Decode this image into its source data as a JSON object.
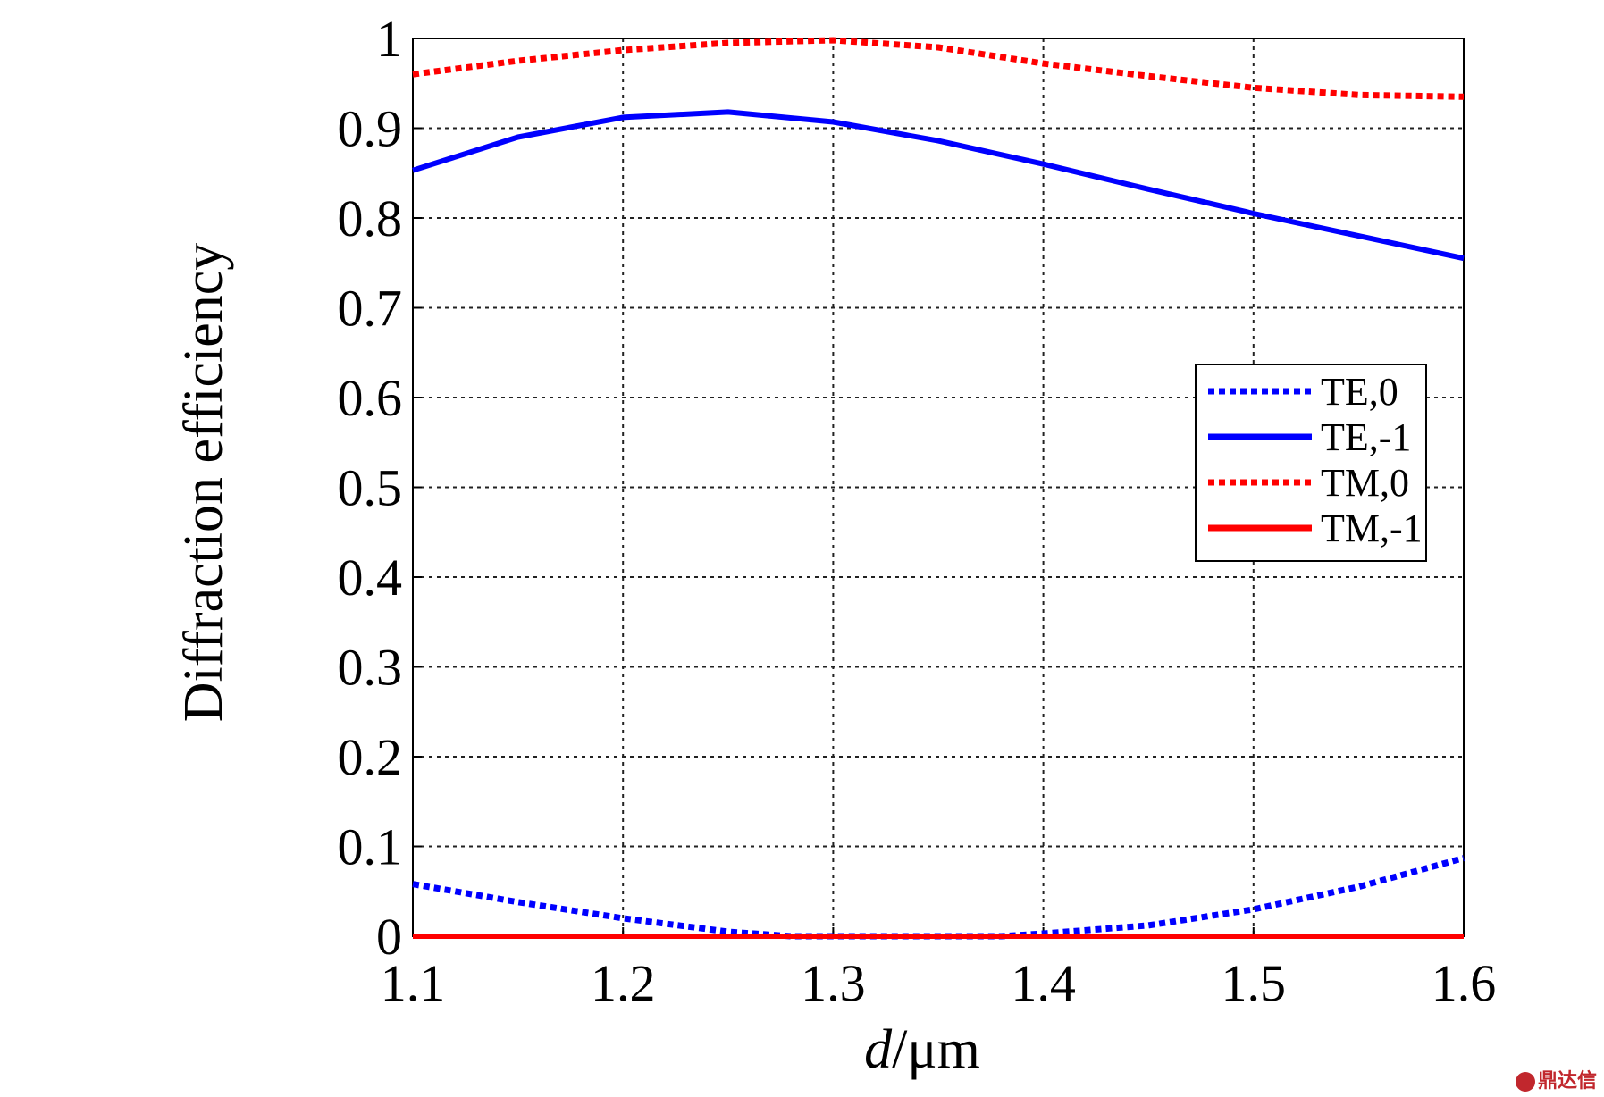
{
  "chart_data": {
    "type": "line",
    "title": "",
    "xlabel_italic": "d",
    "xlabel_rest": "/μm",
    "ylabel": "Diffraction efficiency",
    "xlim": [
      1.1,
      1.6
    ],
    "ylim": [
      0,
      1
    ],
    "xticks": [
      1.1,
      1.2,
      1.3,
      1.4,
      1.5,
      1.6
    ],
    "xtick_labels": [
      "1.1",
      "1.2",
      "1.3",
      "1.4",
      "1.5",
      "1.6"
    ],
    "yticks": [
      0,
      0.1,
      0.2,
      0.3,
      0.4,
      0.5,
      0.6,
      0.7,
      0.8,
      0.9,
      1
    ],
    "ytick_labels": [
      "0",
      "0.1",
      "0.2",
      "0.3",
      "0.4",
      "0.5",
      "0.6",
      "0.7",
      "0.8",
      "0.9",
      "1"
    ],
    "grid": true,
    "legend_position": "center-right",
    "series": [
      {
        "name": "TE,0",
        "color": "#0000ff",
        "style": "dotted",
        "x": [
          1.1,
          1.15,
          1.2,
          1.25,
          1.28,
          1.3,
          1.35,
          1.38,
          1.4,
          1.45,
          1.5,
          1.55,
          1.6
        ],
        "y": [
          0.058,
          0.038,
          0.02,
          0.005,
          0.0,
          0.0,
          0.0,
          0.0,
          0.003,
          0.012,
          0.03,
          0.055,
          0.087
        ]
      },
      {
        "name": "TE,-1",
        "color": "#0000ff",
        "style": "solid",
        "x": [
          1.1,
          1.15,
          1.2,
          1.25,
          1.3,
          1.35,
          1.4,
          1.45,
          1.5,
          1.55,
          1.6
        ],
        "y": [
          0.853,
          0.89,
          0.912,
          0.918,
          0.907,
          0.886,
          0.86,
          0.832,
          0.805,
          0.78,
          0.755
        ]
      },
      {
        "name": "TM,0",
        "color": "#ff0000",
        "style": "dotted",
        "x": [
          1.1,
          1.15,
          1.2,
          1.25,
          1.3,
          1.35,
          1.4,
          1.45,
          1.5,
          1.55,
          1.6
        ],
        "y": [
          0.96,
          0.975,
          0.987,
          0.995,
          0.998,
          0.99,
          0.972,
          0.958,
          0.945,
          0.937,
          0.935
        ]
      },
      {
        "name": "TM,-1",
        "color": "#ff0000",
        "style": "solid",
        "x": [
          1.1,
          1.2,
          1.3,
          1.4,
          1.5,
          1.6
        ],
        "y": [
          0.0,
          0.0,
          0.0,
          0.0,
          0.0,
          0.0
        ]
      }
    ]
  },
  "watermark": {
    "text": "鼎达信"
  }
}
